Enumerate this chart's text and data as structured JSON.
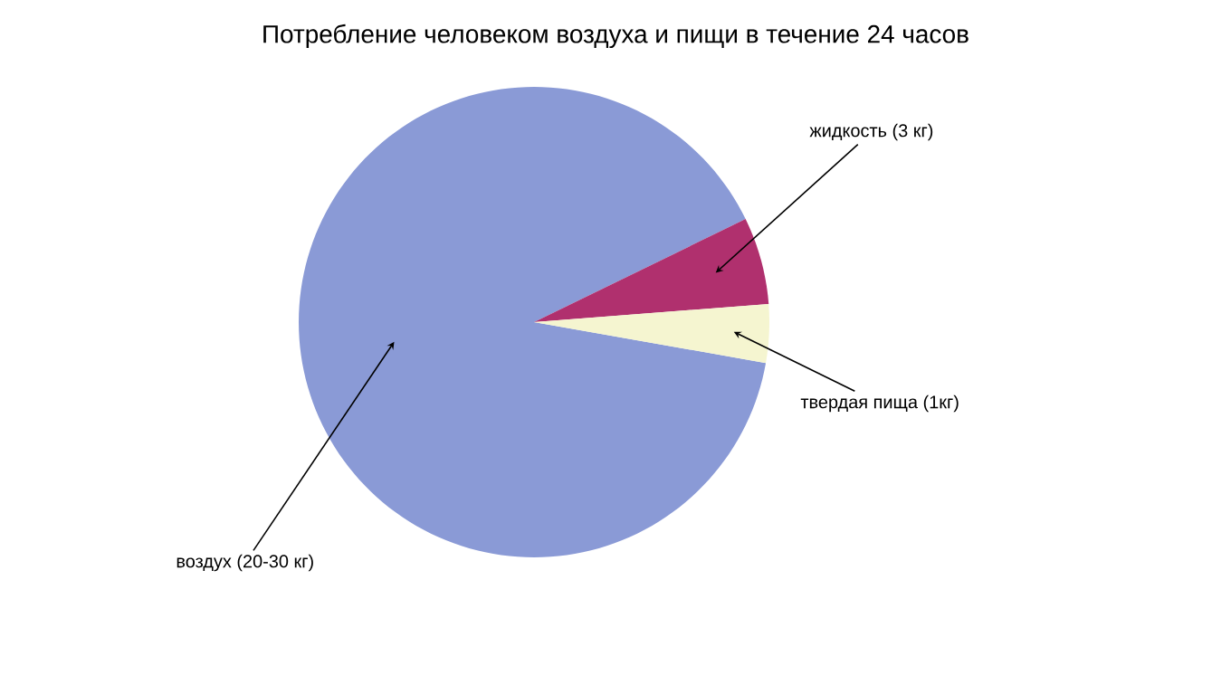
{
  "chart_data": {
    "type": "pie",
    "title": "Потребление человеком воздуха и пищи в течение 24 часов",
    "categories": [
      "воздух (20-30 кг)",
      "жидкость (3 кг)",
      "твердая пища (1кг)"
    ],
    "values": [
      90,
      6,
      4
    ],
    "colors": [
      "#8a9ad6",
      "#b0306e",
      "#f5f5d0"
    ]
  }
}
